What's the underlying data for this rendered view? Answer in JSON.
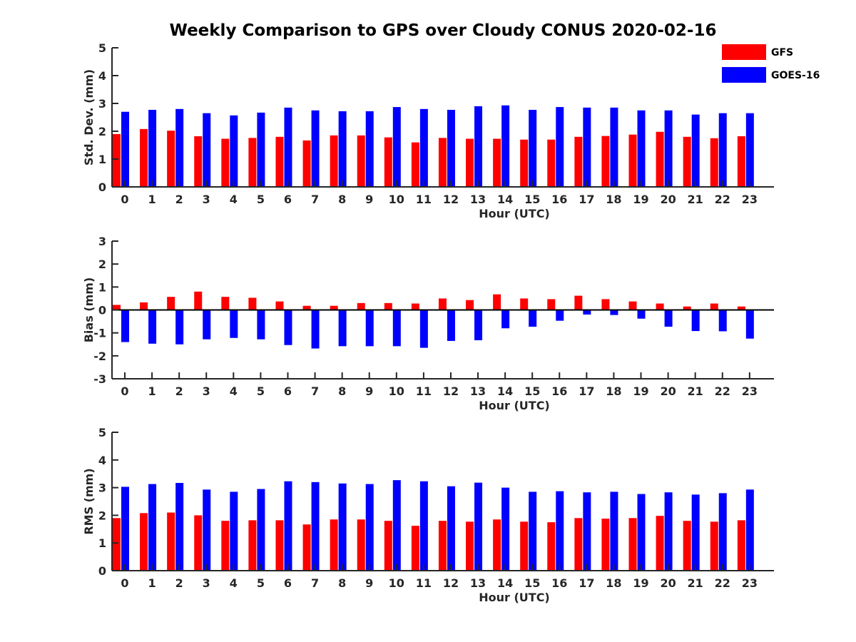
{
  "title": "Weekly Comparison to GPS over Cloudy CONUS 2020-02-16",
  "legend": {
    "placement": "top-right",
    "items": [
      {
        "name": "GFS",
        "color": "#ff0000"
      },
      {
        "name": "GOES-16",
        "color": "#0000ff"
      }
    ]
  },
  "chart_data": [
    {
      "type": "bar",
      "ylabel": "Std. Dev. (mm)",
      "xlabel": "Hour (UTC)",
      "ylim": [
        0,
        5
      ],
      "yticks": [
        0,
        1,
        2,
        3,
        4,
        5
      ],
      "categories": [
        "0",
        "1",
        "2",
        "3",
        "4",
        "5",
        "6",
        "7",
        "8",
        "9",
        "10",
        "11",
        "12",
        "13",
        "14",
        "15",
        "16",
        "17",
        "18",
        "19",
        "20",
        "21",
        "22",
        "23"
      ],
      "series": [
        {
          "name": "GFS",
          "color": "#ff0000",
          "values": [
            1.9,
            2.08,
            2.02,
            1.82,
            1.73,
            1.76,
            1.8,
            1.67,
            1.85,
            1.85,
            1.78,
            1.6,
            1.76,
            1.73,
            1.73,
            1.7,
            1.7,
            1.8,
            1.83,
            1.88,
            1.98,
            1.8,
            1.75,
            1.82
          ]
        },
        {
          "name": "GOES-16",
          "color": "#0000ff",
          "values": [
            2.7,
            2.77,
            2.8,
            2.65,
            2.57,
            2.67,
            2.85,
            2.75,
            2.72,
            2.72,
            2.87,
            2.8,
            2.77,
            2.9,
            2.93,
            2.77,
            2.87,
            2.85,
            2.85,
            2.75,
            2.75,
            2.6,
            2.65,
            2.65
          ]
        }
      ]
    },
    {
      "type": "bar",
      "ylabel": "Bias (mm)",
      "xlabel": "Hour (UTC)",
      "ylim": [
        -3,
        3
      ],
      "yticks": [
        -3,
        -2,
        -1,
        0,
        1,
        2,
        3
      ],
      "categories": [
        "0",
        "1",
        "2",
        "3",
        "4",
        "5",
        "6",
        "7",
        "8",
        "9",
        "10",
        "11",
        "12",
        "13",
        "14",
        "15",
        "16",
        "17",
        "18",
        "19",
        "20",
        "21",
        "22",
        "23"
      ],
      "series": [
        {
          "name": "GFS",
          "color": "#ff0000",
          "values": [
            0.22,
            0.33,
            0.57,
            0.8,
            0.57,
            0.53,
            0.37,
            0.18,
            0.18,
            0.3,
            0.3,
            0.28,
            0.5,
            0.43,
            0.68,
            0.5,
            0.47,
            0.62,
            0.47,
            0.37,
            0.28,
            0.15,
            0.28,
            0.15
          ]
        },
        {
          "name": "GOES-16",
          "color": "#0000ff",
          "values": [
            -1.4,
            -1.47,
            -1.5,
            -1.28,
            -1.22,
            -1.28,
            -1.53,
            -1.68,
            -1.58,
            -1.58,
            -1.58,
            -1.65,
            -1.35,
            -1.32,
            -0.8,
            -0.73,
            -0.47,
            -0.2,
            -0.22,
            -0.38,
            -0.73,
            -0.92,
            -0.93,
            -1.25
          ]
        }
      ]
    },
    {
      "type": "bar",
      "ylabel": "RMS (mm)",
      "xlabel": "Hour (UTC)",
      "ylim": [
        0,
        5
      ],
      "yticks": [
        0,
        1,
        2,
        3,
        4,
        5
      ],
      "categories": [
        "0",
        "1",
        "2",
        "3",
        "4",
        "5",
        "6",
        "7",
        "8",
        "9",
        "10",
        "11",
        "12",
        "13",
        "14",
        "15",
        "16",
        "17",
        "18",
        "19",
        "20",
        "21",
        "22",
        "23"
      ],
      "series": [
        {
          "name": "GFS",
          "color": "#ff0000",
          "values": [
            1.9,
            2.08,
            2.1,
            2.0,
            1.8,
            1.82,
            1.82,
            1.67,
            1.85,
            1.85,
            1.8,
            1.62,
            1.8,
            1.77,
            1.85,
            1.77,
            1.75,
            1.9,
            1.88,
            1.9,
            1.98,
            1.8,
            1.77,
            1.82
          ]
        },
        {
          "name": "GOES-16",
          "color": "#0000ff",
          "values": [
            3.03,
            3.13,
            3.17,
            2.93,
            2.85,
            2.95,
            3.23,
            3.2,
            3.15,
            3.13,
            3.27,
            3.23,
            3.05,
            3.18,
            3.0,
            2.85,
            2.87,
            2.83,
            2.85,
            2.77,
            2.83,
            2.75,
            2.8,
            2.93
          ]
        }
      ]
    }
  ]
}
